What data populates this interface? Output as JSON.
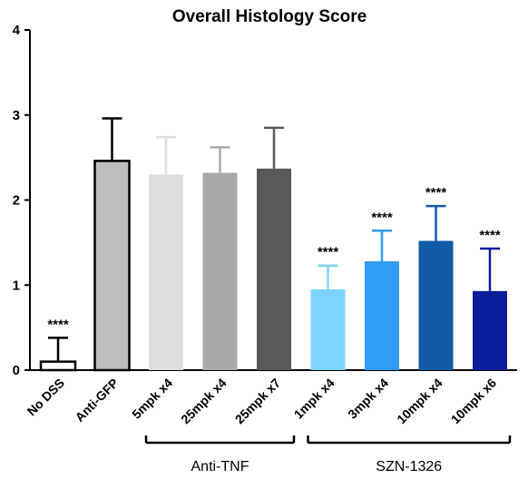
{
  "chart_data": {
    "type": "bar",
    "title": "Overall Histology Score",
    "xlabel": "",
    "ylabel": "",
    "ylim": [
      0,
      4
    ],
    "yticks": [
      "0",
      "1",
      "2",
      "3",
      "4"
    ],
    "grid": false,
    "categories": [
      "No DSS",
      "Anti-GFP",
      "5mpk x4",
      "25mpk x4",
      "25mpk x7",
      "1mpk x4",
      "3mpk x4",
      "10mpk x4",
      "10mpk x6"
    ],
    "values": [
      0.1,
      2.46,
      2.3,
      2.32,
      2.37,
      0.95,
      1.28,
      1.52,
      0.93
    ],
    "error_upper": [
      0.38,
      2.96,
      2.74,
      2.62,
      2.85,
      1.23,
      1.64,
      1.93,
      1.43
    ],
    "colors": [
      "#ffffff",
      "#bdbdbd",
      "#dedede",
      "#a9a9a9",
      "#595959",
      "#7fd4ff",
      "#2f9cf5",
      "#115aa6",
      "#0a1d9c"
    ],
    "outlined": [
      true,
      true,
      false,
      false,
      false,
      false,
      false,
      false,
      false
    ],
    "significance": [
      "****",
      "",
      "",
      "",
      "",
      "****",
      "****",
      "****",
      "****"
    ],
    "groups": [
      {
        "label": "Anti-TNF",
        "from": 2,
        "to": 4
      },
      {
        "label": "SZN-1326",
        "from": 5,
        "to": 8
      }
    ]
  }
}
